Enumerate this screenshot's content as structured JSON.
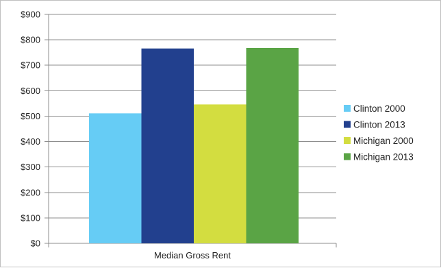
{
  "chart_data": {
    "type": "bar",
    "categories": [
      "Median Gross Rent"
    ],
    "series": [
      {
        "name": "Clinton 2000",
        "values": [
          511
        ],
        "color": "#66ccf5"
      },
      {
        "name": "Clinton 2013",
        "values": [
          766
        ],
        "color": "#22408e"
      },
      {
        "name": "Michigan 2000",
        "values": [
          546
        ],
        "color": "#d3dd40"
      },
      {
        "name": "Michigan 2013",
        "values": [
          768
        ],
        "color": "#5aa445"
      }
    ],
    "ylim": [
      0,
      900
    ],
    "yticks": [
      0,
      100,
      200,
      300,
      400,
      500,
      600,
      700,
      800,
      900
    ],
    "ytick_labels": [
      "$0",
      "$100",
      "$200",
      "$300",
      "$400",
      "$500",
      "$600",
      "$700",
      "$800",
      "$900"
    ],
    "grid": true,
    "legend_position": "right",
    "title": "",
    "xlabel": "",
    "ylabel": ""
  }
}
